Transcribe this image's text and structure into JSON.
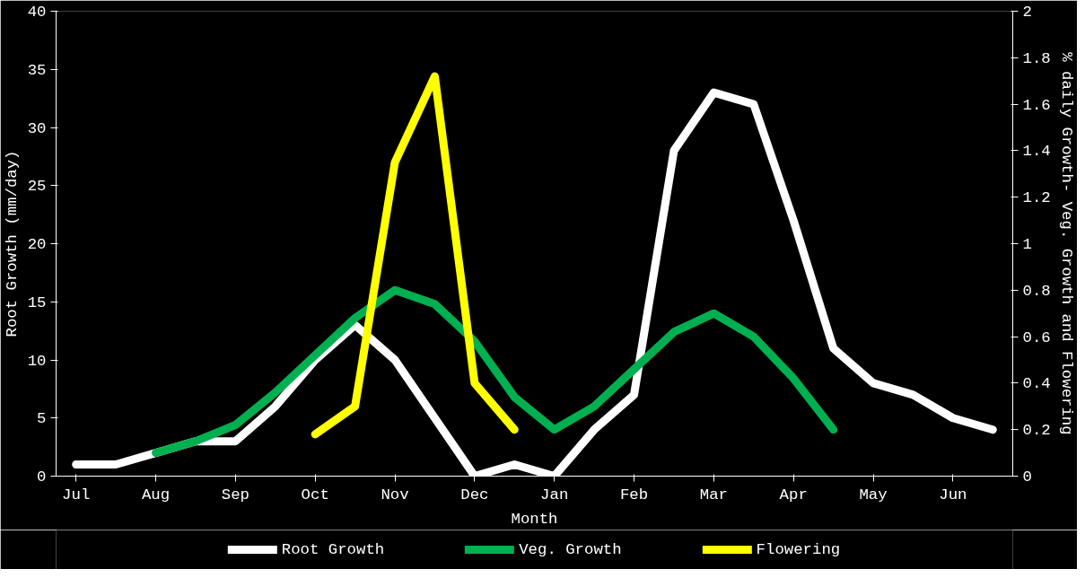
{
  "chart_data": {
    "type": "line",
    "xlabel": "Month",
    "ylabel": "Root Growth (mm/day)",
    "y2label": "% daily Growth- Veg. Growth and Flowering",
    "categories": [
      "Jul",
      null,
      "Aug",
      null,
      "Sep",
      null,
      "Oct",
      null,
      "Nov",
      null,
      "Dec",
      null,
      "Jan",
      null,
      "Feb",
      null,
      "Mar",
      null,
      "Apr",
      null,
      "May",
      null,
      "Jun",
      null
    ],
    "ylim": [
      0,
      40
    ],
    "yticks": [
      0,
      5,
      10,
      15,
      20,
      25,
      30,
      35,
      40
    ],
    "y2lim": [
      0,
      2
    ],
    "y2ticks": [
      0,
      0.2,
      0.4,
      0.6,
      0.8,
      1,
      1.2,
      1.4,
      1.6,
      1.8,
      2
    ],
    "legend": "bottom",
    "line_style": "solid",
    "series": [
      {
        "name": "Root Growth",
        "color": "#ffffff",
        "values": [
          1,
          1,
          2,
          3,
          3,
          6,
          10,
          13,
          10,
          5,
          0,
          1,
          0,
          4,
          7,
          28,
          33,
          32,
          22,
          11,
          8,
          7,
          5,
          4
        ]
      },
      {
        "name": "Veg. Growth",
        "color": "#00b050",
        "axis": "y2",
        "values": [
          null,
          null,
          0.1,
          0.15,
          0.22,
          0.36,
          0.52,
          0.68,
          0.8,
          0.74,
          0.58,
          0.34,
          0.2,
          0.3,
          0.46,
          0.62,
          0.7,
          0.6,
          0.42,
          0.2,
          null,
          null,
          null,
          null
        ]
      },
      {
        "name": "Flowering",
        "color": "#ffff00",
        "axis": "y2",
        "values": [
          null,
          null,
          null,
          null,
          null,
          null,
          0.18,
          0.3,
          1.35,
          1.72,
          0.4,
          0.2,
          null,
          null,
          null,
          null,
          null,
          null,
          null,
          null,
          null,
          null,
          null,
          null
        ]
      }
    ]
  }
}
